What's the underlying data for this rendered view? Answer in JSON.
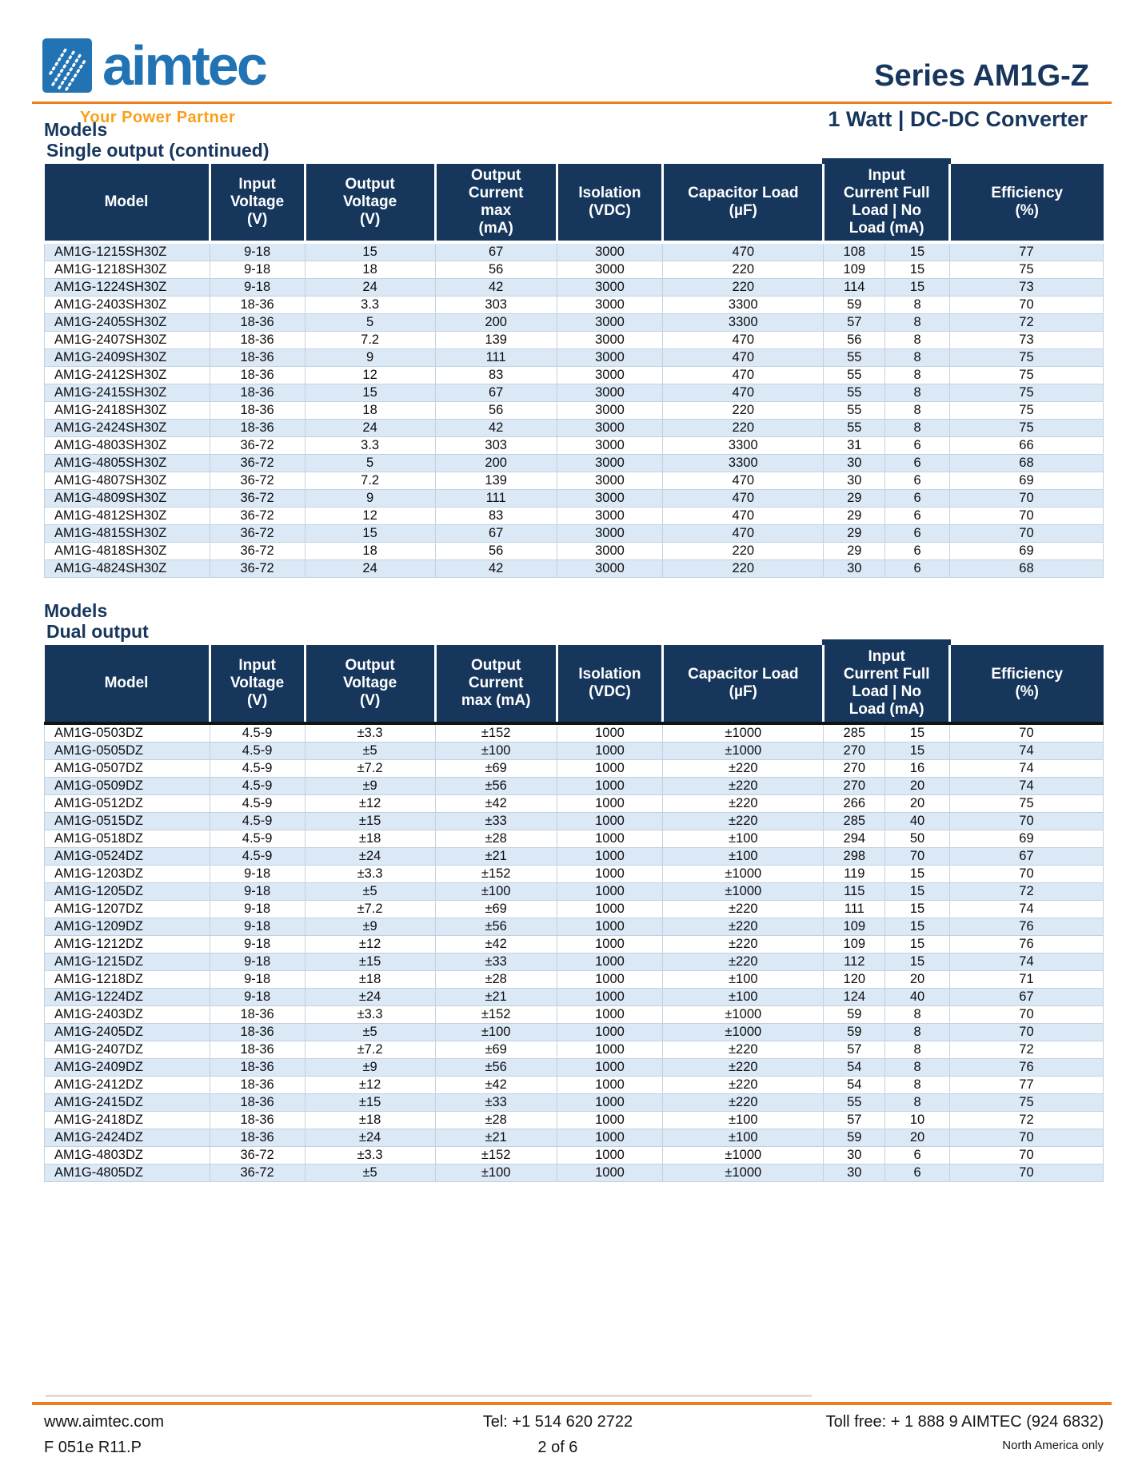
{
  "brand": {
    "logo_text": "aimtec",
    "tagline": "Your Power Partner"
  },
  "header": {
    "series_title": "Series AM1G-Z",
    "subtitle": "1 Watt | DC-DC Converter"
  },
  "tables": [
    {
      "section_title": "Models",
      "section_subtitle": "Single output (continued)",
      "columns": [
        {
          "label": "Model",
          "lines": [
            "Model"
          ]
        },
        {
          "label": "Input Voltage (V)",
          "lines": [
            "Input",
            "Voltage",
            "(V)"
          ]
        },
        {
          "label": "Output Voltage (V)",
          "lines": [
            "Output",
            "Voltage",
            "(V)"
          ]
        },
        {
          "label": "Output Current max (mA)",
          "lines": [
            "Output",
            "Current",
            "max",
            "(mA)"
          ]
        },
        {
          "label": "Isolation (VDC)",
          "lines": [
            "Isolation",
            "(VDC)"
          ]
        },
        {
          "label": "Capacitor Load (µF)",
          "lines": [
            "Capacitor Load",
            "(µF)"
          ]
        },
        {
          "label": "Input Current Full Load | No Load (mA)",
          "lines": [
            "Input",
            "Current Full",
            "Load |  No",
            "Load (mA)"
          ],
          "colspan": 2,
          "tall": true
        },
        {
          "label": "Efficiency (%)",
          "lines": [
            "Efficiency",
            "(%)"
          ]
        }
      ],
      "rows": [
        [
          "AM1G-1215SH30Z",
          "9-18",
          "15",
          "67",
          "3000",
          "470",
          "108",
          "15",
          "77"
        ],
        [
          "AM1G-1218SH30Z",
          "9-18",
          "18",
          "56",
          "3000",
          "220",
          "109",
          "15",
          "75"
        ],
        [
          "AM1G-1224SH30Z",
          "9-18",
          "24",
          "42",
          "3000",
          "220",
          "114",
          "15",
          "73"
        ],
        [
          "AM1G-2403SH30Z",
          "18-36",
          "3.3",
          "303",
          "3000",
          "3300",
          "59",
          "8",
          "70"
        ],
        [
          "AM1G-2405SH30Z",
          "18-36",
          "5",
          "200",
          "3000",
          "3300",
          "57",
          "8",
          "72"
        ],
        [
          "AM1G-2407SH30Z",
          "18-36",
          "7.2",
          "139",
          "3000",
          "470",
          "56",
          "8",
          "73"
        ],
        [
          "AM1G-2409SH30Z",
          "18-36",
          "9",
          "111",
          "3000",
          "470",
          "55",
          "8",
          "75"
        ],
        [
          "AM1G-2412SH30Z",
          "18-36",
          "12",
          "83",
          "3000",
          "470",
          "55",
          "8",
          "75"
        ],
        [
          "AM1G-2415SH30Z",
          "18-36",
          "15",
          "67",
          "3000",
          "470",
          "55",
          "8",
          "75"
        ],
        [
          "AM1G-2418SH30Z",
          "18-36",
          "18",
          "56",
          "3000",
          "220",
          "55",
          "8",
          "75"
        ],
        [
          "AM1G-2424SH30Z",
          "18-36",
          "24",
          "42",
          "3000",
          "220",
          "55",
          "8",
          "75"
        ],
        [
          "AM1G-4803SH30Z",
          "36-72",
          "3.3",
          "303",
          "3000",
          "3300",
          "31",
          "6",
          "66"
        ],
        [
          "AM1G-4805SH30Z",
          "36-72",
          "5",
          "200",
          "3000",
          "3300",
          "30",
          "6",
          "68"
        ],
        [
          "AM1G-4807SH30Z",
          "36-72",
          "7.2",
          "139",
          "3000",
          "470",
          "30",
          "6",
          "69"
        ],
        [
          "AM1G-4809SH30Z",
          "36-72",
          "9",
          "111",
          "3000",
          "470",
          "29",
          "6",
          "70"
        ],
        [
          "AM1G-4812SH30Z",
          "36-72",
          "12",
          "83",
          "3000",
          "470",
          "29",
          "6",
          "70"
        ],
        [
          "AM1G-4815SH30Z",
          "36-72",
          "15",
          "67",
          "3000",
          "470",
          "29",
          "6",
          "70"
        ],
        [
          "AM1G-4818SH30Z",
          "36-72",
          "18",
          "56",
          "3000",
          "220",
          "29",
          "6",
          "69"
        ],
        [
          "AM1G-4824SH30Z",
          "36-72",
          "24",
          "42",
          "3000",
          "220",
          "30",
          "6",
          "68"
        ]
      ]
    },
    {
      "section_title": "Models",
      "section_subtitle": "Dual output",
      "columns": [
        {
          "label": "Model",
          "lines": [
            "Model"
          ]
        },
        {
          "label": "Input Voltage (V)",
          "lines": [
            "Input",
            "Voltage",
            "(V)"
          ]
        },
        {
          "label": "Output Voltage (V)",
          "lines": [
            "Output",
            "Voltage",
            "(V)"
          ]
        },
        {
          "label": "Output Current max (mA)",
          "lines": [
            "Output",
            "Current",
            "max (mA)"
          ]
        },
        {
          "label": "Isolation (VDC)",
          "lines": [
            "Isolation",
            "(VDC)"
          ]
        },
        {
          "label": "Capacitor Load (µF)",
          "lines": [
            "Capacitor Load",
            "(µF)"
          ]
        },
        {
          "label": "Input Current Full Load | No Load (mA)",
          "lines": [
            "Input",
            "Current Full",
            "Load | No",
            "Load (mA)"
          ],
          "colspan": 2,
          "tall": true
        },
        {
          "label": "Efficiency (%)",
          "lines": [
            "Efficiency",
            "(%)"
          ]
        }
      ],
      "rows": [
        [
          "AM1G-0503DZ",
          "4.5-9",
          "±3.3",
          "±152",
          "1000",
          "±1000",
          "285",
          "15",
          "70"
        ],
        [
          "AM1G-0505DZ",
          "4.5-9",
          "±5",
          "±100",
          "1000",
          "±1000",
          "270",
          "15",
          "74"
        ],
        [
          "AM1G-0507DZ",
          "4.5-9",
          "±7.2",
          "±69",
          "1000",
          "±220",
          "270",
          "16",
          "74"
        ],
        [
          "AM1G-0509DZ",
          "4.5-9",
          "±9",
          "±56",
          "1000",
          "±220",
          "270",
          "20",
          "74"
        ],
        [
          "AM1G-0512DZ",
          "4.5-9",
          "±12",
          "±42",
          "1000",
          "±220",
          "266",
          "20",
          "75"
        ],
        [
          "AM1G-0515DZ",
          "4.5-9",
          "±15",
          "±33",
          "1000",
          "±220",
          "285",
          "40",
          "70"
        ],
        [
          "AM1G-0518DZ",
          "4.5-9",
          "±18",
          "±28",
          "1000",
          "±100",
          "294",
          "50",
          "69"
        ],
        [
          "AM1G-0524DZ",
          "4.5-9",
          "±24",
          "±21",
          "1000",
          "±100",
          "298",
          "70",
          "67"
        ],
        [
          "AM1G-1203DZ",
          "9-18",
          "±3.3",
          "±152",
          "1000",
          "±1000",
          "119",
          "15",
          "70"
        ],
        [
          "AM1G-1205DZ",
          "9-18",
          "±5",
          "±100",
          "1000",
          "±1000",
          "115",
          "15",
          "72"
        ],
        [
          "AM1G-1207DZ",
          "9-18",
          "±7.2",
          "±69",
          "1000",
          "±220",
          "111",
          "15",
          "74"
        ],
        [
          "AM1G-1209DZ",
          "9-18",
          "±9",
          "±56",
          "1000",
          "±220",
          "109",
          "15",
          "76"
        ],
        [
          "AM1G-1212DZ",
          "9-18",
          "±12",
          "±42",
          "1000",
          "±220",
          "109",
          "15",
          "76"
        ],
        [
          "AM1G-1215DZ",
          "9-18",
          "±15",
          "±33",
          "1000",
          "±220",
          "112",
          "15",
          "74"
        ],
        [
          "AM1G-1218DZ",
          "9-18",
          "±18",
          "±28",
          "1000",
          "±100",
          "120",
          "20",
          "71"
        ],
        [
          "AM1G-1224DZ",
          "9-18",
          "±24",
          "±21",
          "1000",
          "±100",
          "124",
          "40",
          "67"
        ],
        [
          "AM1G-2403DZ",
          "18-36",
          "±3.3",
          "±152",
          "1000",
          "±1000",
          "59",
          "8",
          "70"
        ],
        [
          "AM1G-2405DZ",
          "18-36",
          "±5",
          "±100",
          "1000",
          "±1000",
          "59",
          "8",
          "70"
        ],
        [
          "AM1G-2407DZ",
          "18-36",
          "±7.2",
          "±69",
          "1000",
          "±220",
          "57",
          "8",
          "72"
        ],
        [
          "AM1G-2409DZ",
          "18-36",
          "±9",
          "±56",
          "1000",
          "±220",
          "54",
          "8",
          "76"
        ],
        [
          "AM1G-2412DZ",
          "18-36",
          "±12",
          "±42",
          "1000",
          "±220",
          "54",
          "8",
          "77"
        ],
        [
          "AM1G-2415DZ",
          "18-36",
          "±15",
          "±33",
          "1000",
          "±220",
          "55",
          "8",
          "75"
        ],
        [
          "AM1G-2418DZ",
          "18-36",
          "±18",
          "±28",
          "1000",
          "±100",
          "57",
          "10",
          "72"
        ],
        [
          "AM1G-2424DZ",
          "18-36",
          "±24",
          "±21",
          "1000",
          "±100",
          "59",
          "20",
          "70"
        ],
        [
          "AM1G-4803DZ",
          "36-72",
          "±3.3",
          "±152",
          "1000",
          "±1000",
          "30",
          "6",
          "70"
        ],
        [
          "AM1G-4805DZ",
          "36-72",
          "±5",
          "±100",
          "1000",
          "±1000",
          "30",
          "6",
          "70"
        ]
      ]
    }
  ],
  "footer": {
    "website": "www.aimtec.com",
    "form_number": "F 051e R11.P",
    "tel": "Tel: +1 514 620 2722",
    "page_number": "2 of 6",
    "toll_free": "Toll free: + 1 888 9 AIMTEC (924 6832)",
    "region_note": "North America only"
  },
  "colors": {
    "navy_header": "#16365c",
    "heading_navy": "#17365d",
    "accent_orange": "#ef7d1e",
    "tagline_orange": "#f9a01b",
    "logo_blue": "#2173b4",
    "row_stripe_blue": "#dbe8f6"
  }
}
